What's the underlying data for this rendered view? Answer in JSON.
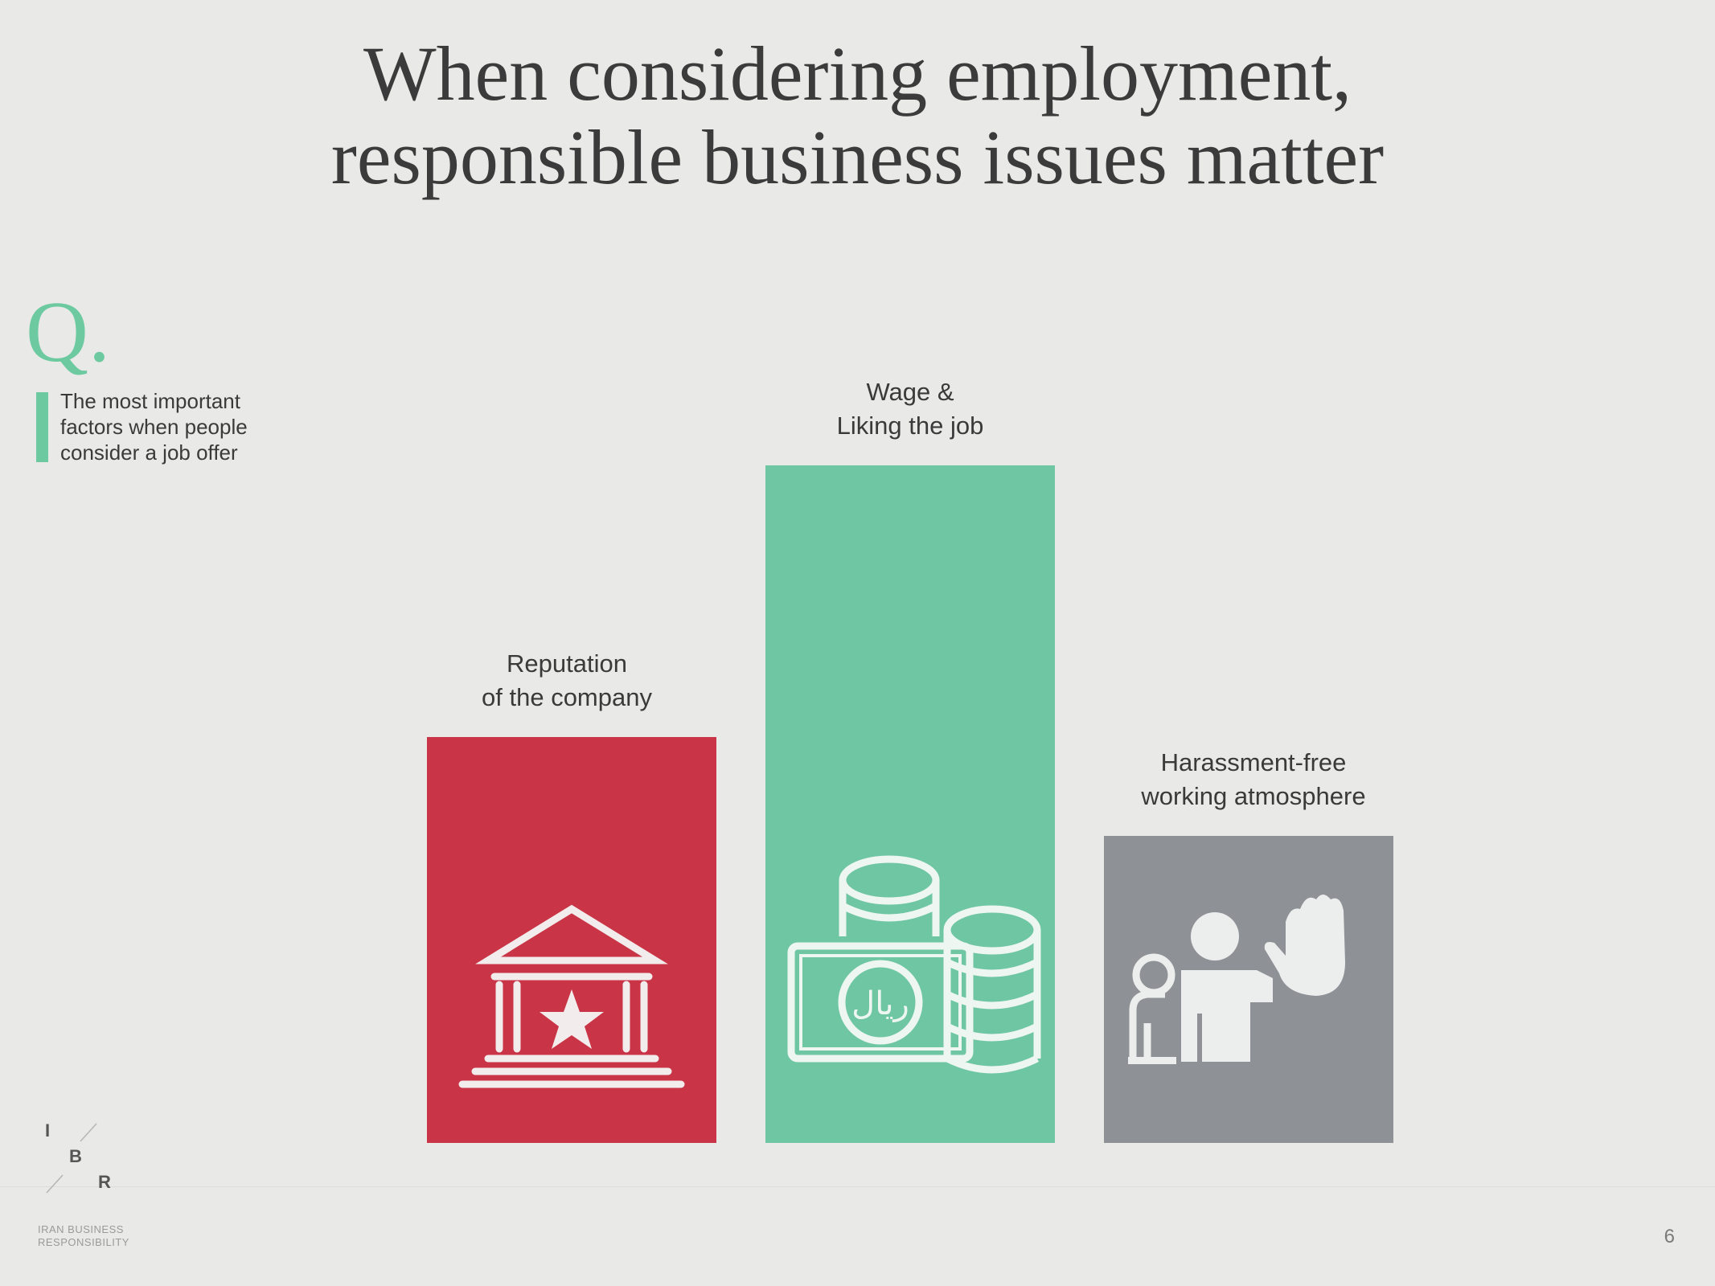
{
  "title_line1": "When considering employment,",
  "title_line2": "responsible business issues matter",
  "question": {
    "marker": "Q.",
    "text_line1": "The most important",
    "text_line2": "factors when people",
    "text_line3": "consider a job offer",
    "accent_color": "#6cc9a0"
  },
  "chart_data": {
    "type": "bar",
    "categories": [
      "Reputation\nof the company",
      "Wage &\nLiking the job",
      "Harassment-free\nworking atmosphere"
    ],
    "values": [
      1,
      2,
      1
    ],
    "value_scale": "unlabeled",
    "colors": [
      "#c93546",
      "#6ec6a3",
      "#8e9195"
    ],
    "icons": [
      "institution-star-icon",
      "money-coins-rial-icon",
      "harassment-stop-hand-icon"
    ],
    "title": "",
    "xlabel": "",
    "ylabel": "",
    "grid": false
  },
  "footer": {
    "logo_letters": [
      "I",
      "B",
      "R"
    ],
    "logo_text": "IRAN BUSINESS\nRESPONSIBILITY",
    "page_number": "6"
  }
}
